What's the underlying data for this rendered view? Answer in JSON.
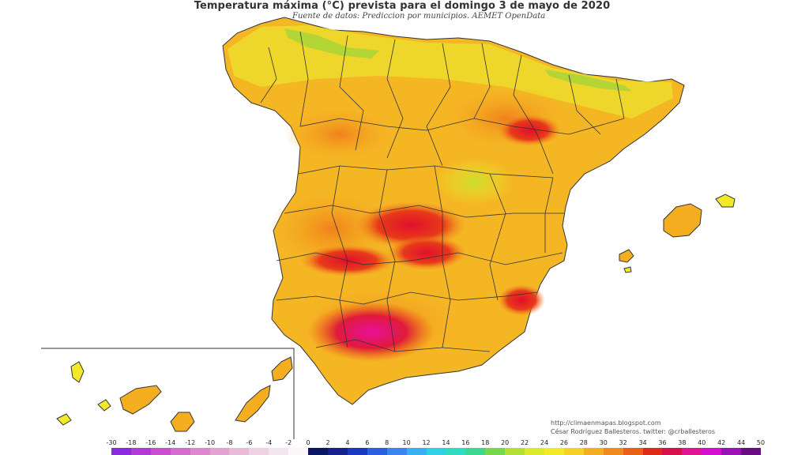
{
  "map": {
    "title": "Temperatura máxima (°C) prevista para el domingo 3 de mayo de 2020",
    "subtitle": "Fuente de datos: Prediccion por municipios. AEMET OpenData",
    "credits": {
      "url": "http://climaenmapas.blogspot.com",
      "author": "César Rodríguez Ballesteros. twitter: @crballesteros"
    },
    "legend": {
      "ticks": [
        "-30",
        "-18",
        "-16",
        "-14",
        "-12",
        "-10",
        "-8",
        "-6",
        "-4",
        "-2",
        "0",
        "2",
        "4",
        "6",
        "8",
        "10",
        "12",
        "14",
        "16",
        "18",
        "20",
        "22",
        "24",
        "26",
        "28",
        "30",
        "32",
        "34",
        "36",
        "38",
        "40",
        "42",
        "44",
        "50"
      ],
      "colors": [
        "#8a2be2",
        "#b23bd6",
        "#c94fd0",
        "#d46ccc",
        "#dc88ce",
        "#e2a3d3",
        "#e8bcd9",
        "#eed2e2",
        "#f4e6ee",
        "#fbf6f8",
        "#0a1566",
        "#16218c",
        "#1b38c0",
        "#2a5fe0",
        "#3a86f0",
        "#39b0f2",
        "#30d0e6",
        "#30dcc0",
        "#3cd890",
        "#78d84c",
        "#b4e036",
        "#dcea2c",
        "#f2ea28",
        "#f5d025",
        "#f5ae20",
        "#f08a1c",
        "#ea5e16",
        "#e02a18",
        "#d8104a",
        "#e01490",
        "#d40ed0",
        "#9a12b4",
        "#6a0c82"
      ]
    },
    "regions": {
      "peninsula": "Península Ibérica",
      "baleares": "Islas Baleares",
      "canarias": "Islas Canarias"
    }
  }
}
